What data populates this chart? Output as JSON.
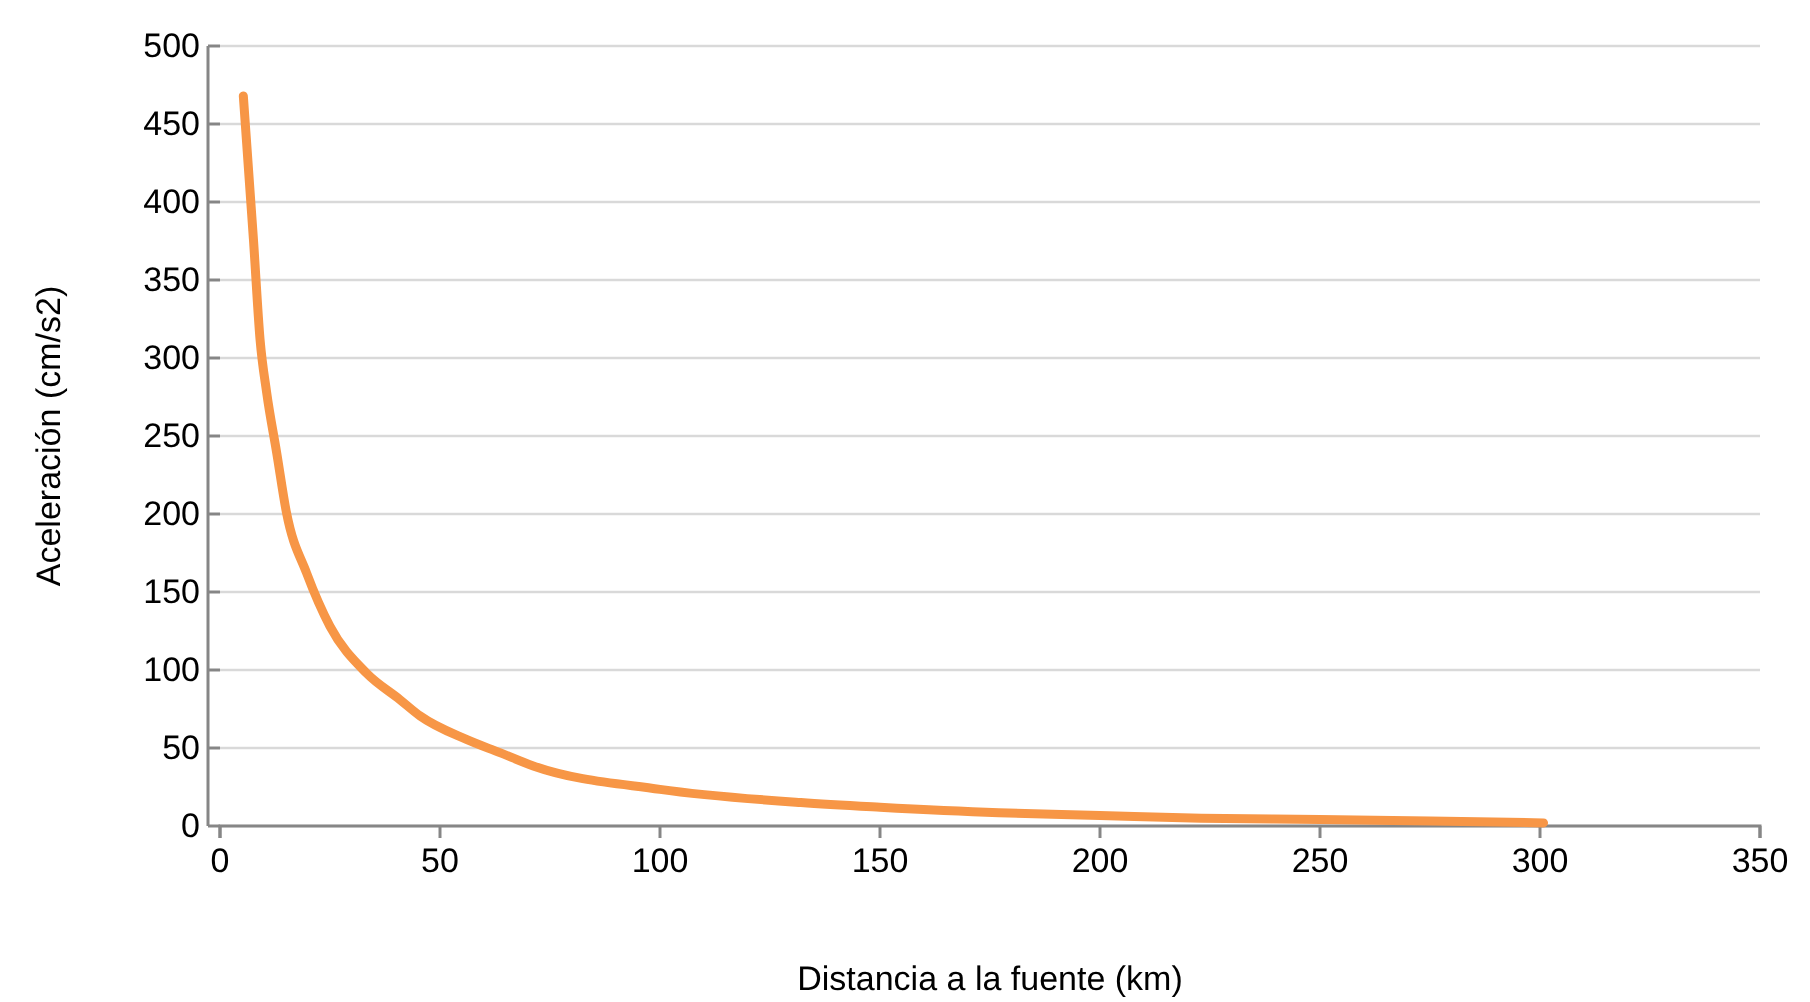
{
  "chart_data": {
    "type": "line",
    "xlabel": "Distancia a la fuente (km)",
    "ylabel": "Aceleración (cm/s2)",
    "xlim": [
      0,
      350
    ],
    "xticks": [
      0,
      50,
      100,
      150,
      200,
      250,
      300,
      350
    ],
    "ylim": [
      0,
      500
    ],
    "yticks": [
      0,
      50,
      100,
      150,
      200,
      250,
      300,
      350,
      400,
      450,
      500
    ],
    "grid": "y",
    "marker": "none",
    "line_style": "solid",
    "series": [
      {
        "color": "#f79646",
        "x": [
          5.3,
          7.6,
          9.1,
          10.6,
          12.9,
          15.1,
          19.7,
          25,
          33.3,
          40.9,
          45.5,
          56,
          63.6,
          71.2,
          100,
          132,
          150,
          177,
          200,
          223,
          250,
          275,
          300.8
        ],
        "values": [
          468,
          376,
          312,
          278,
          239,
          201,
          162,
          128,
          98,
          81,
          70.5,
          55.5,
          47,
          38.5,
          23.5,
          15,
          12,
          8.5,
          6.8,
          5,
          4.2,
          3.2,
          2
        ]
      }
    ]
  }
}
